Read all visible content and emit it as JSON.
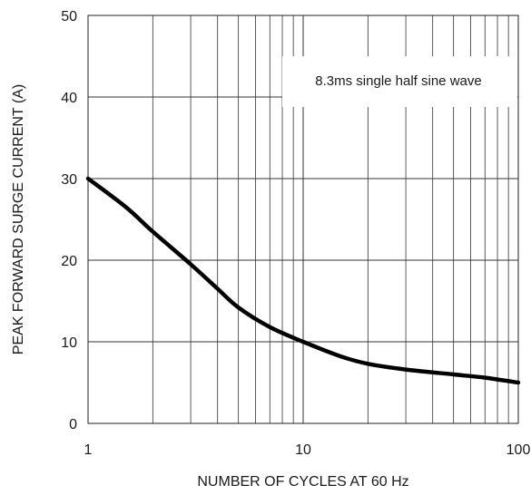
{
  "chart_data": {
    "type": "line",
    "title": "",
    "xlabel": "NUMBER OF CYCLES AT 60 Hz",
    "ylabel": "PEAK FORWARD SURGE CURRENT (A)",
    "x_scale": "log",
    "xlim": [
      1,
      100
    ],
    "ylim": [
      0,
      50
    ],
    "x_ticks": [
      1,
      10,
      100
    ],
    "x_tick_labels": [
      "1",
      "10",
      "100"
    ],
    "y_ticks": [
      0,
      10,
      20,
      30,
      40,
      50
    ],
    "y_tick_labels": [
      "0",
      "10",
      "20",
      "30",
      "40",
      "50"
    ],
    "grid": true,
    "annotation": "8.3ms single half sine wave",
    "series": [
      {
        "x": [
          1,
          1.5,
          2,
          3,
          4,
          5,
          7,
          10,
          15,
          20,
          30,
          50,
          70,
          100
        ],
        "y": [
          30,
          26.5,
          23.5,
          19.5,
          16.5,
          14.2,
          11.8,
          10,
          8.2,
          7.3,
          6.6,
          6.0,
          5.6,
          5.0
        ]
      }
    ],
    "line_color": "#000000",
    "grid_color": "#333333"
  }
}
